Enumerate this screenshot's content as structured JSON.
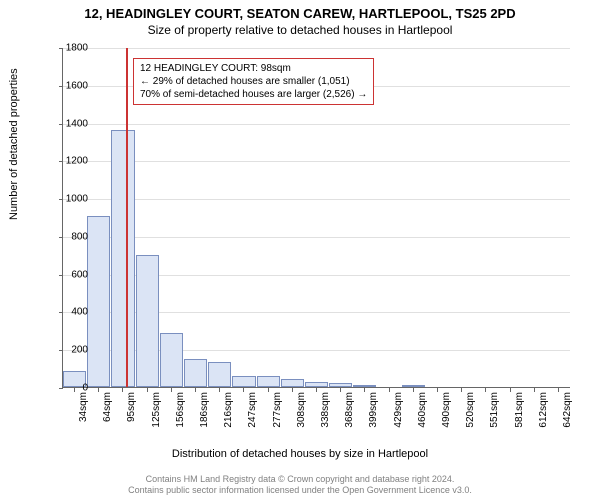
{
  "titles": {
    "main": "12, HEADINGLEY COURT, SEATON CAREW, HARTLEPOOL, TS25 2PD",
    "sub": "Size of property relative to detached houses in Hartlepool"
  },
  "chart": {
    "type": "histogram",
    "ylabel": "Number of detached properties",
    "xlabel": "Distribution of detached houses by size in Hartlepool",
    "ylim": [
      0,
      1800
    ],
    "ytick_step": 200,
    "yticks": [
      0,
      200,
      400,
      600,
      800,
      1000,
      1200,
      1400,
      1600,
      1800
    ],
    "grid_color": "#e0e0e0",
    "axis_color": "#666666",
    "bar_fill": "#dbe4f5",
    "bar_stroke": "#7a8fbf",
    "marker_color": "#cc3333",
    "marker_x_value": 98,
    "background_color": "#ffffff",
    "x_categories": [
      "34sqm",
      "64sqm",
      "95sqm",
      "125sqm",
      "156sqm",
      "186sqm",
      "216sqm",
      "247sqm",
      "277sqm",
      "308sqm",
      "338sqm",
      "368sqm",
      "399sqm",
      "429sqm",
      "460sqm",
      "490sqm",
      "520sqm",
      "551sqm",
      "581sqm",
      "612sqm",
      "642sqm"
    ],
    "values": [
      85,
      905,
      1360,
      700,
      285,
      150,
      135,
      60,
      60,
      40,
      25,
      20,
      8,
      0,
      8,
      0,
      0,
      0,
      0,
      0,
      0
    ]
  },
  "annotation": {
    "line1": "12 HEADINGLEY COURT: 98sqm",
    "line2": "← 29% of detached houses are smaller (1,051)",
    "line3": "70% of semi-detached houses are larger (2,526) →",
    "border_color": "#cc3333",
    "bg_color": "#ffffff",
    "fontsize": 10
  },
  "footer": {
    "line1": "Contains HM Land Registry data © Crown copyright and database right 2024.",
    "line2": "Contains public sector information licensed under the Open Government Licence v3.0.",
    "color": "#808080"
  }
}
